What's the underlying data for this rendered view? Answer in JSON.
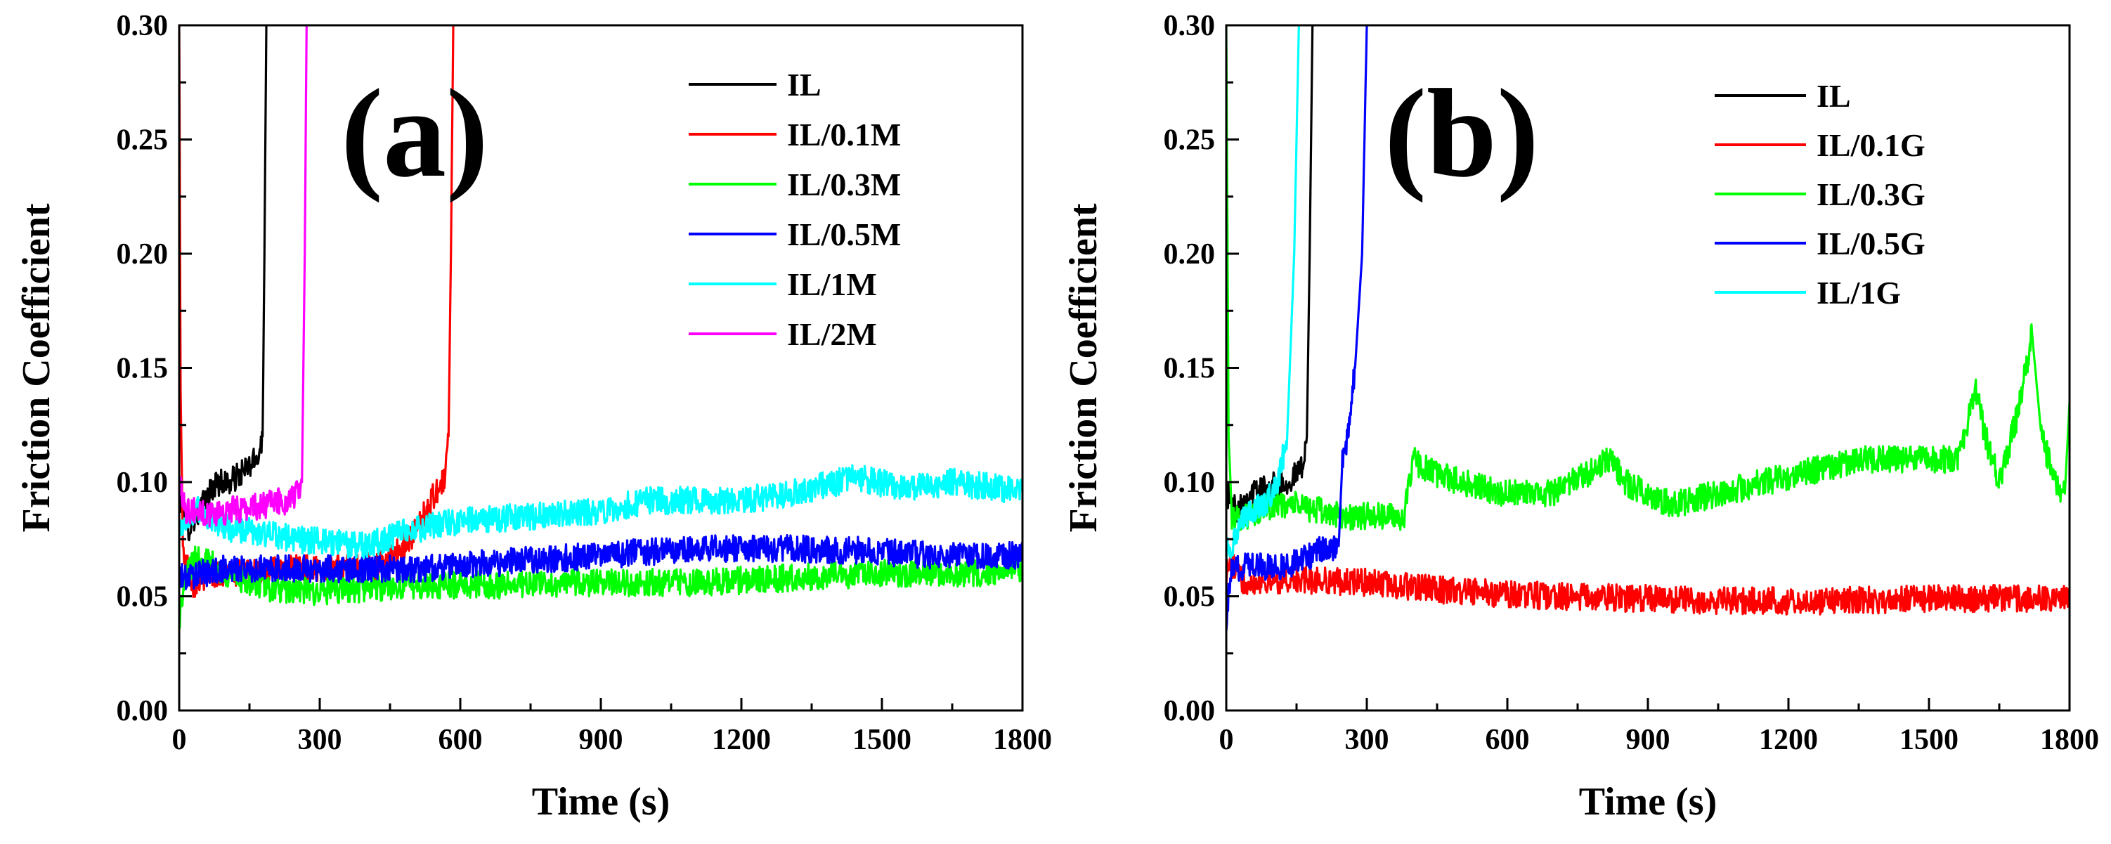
{
  "chart_data": [
    {
      "type": "line",
      "panel_label": "(a)",
      "xlabel": "Time (s)",
      "ylabel": "Friction Coefficient",
      "xlim": [
        0,
        1800
      ],
      "ylim": [
        0,
        0.3
      ],
      "x_ticks": [
        0,
        300,
        600,
        900,
        1200,
        1500,
        1800
      ],
      "x_tick_labels": [
        "0",
        "300",
        "600",
        "900",
        "1200",
        "1500",
        "1800"
      ],
      "y_ticks": [
        0,
        0.05,
        0.1,
        0.15,
        0.2,
        0.25,
        0.3
      ],
      "y_tick_labels": [
        "0.00",
        "0.05",
        "0.10",
        "0.15",
        "0.20",
        "0.25",
        "0.30"
      ],
      "legend_position": "top-right",
      "series": [
        {
          "name": "IL",
          "color": "#000000",
          "points": [
            [
              0,
              0.095
            ],
            [
              20,
              0.08
            ],
            [
              50,
              0.09
            ],
            [
              80,
              0.1
            ],
            [
              110,
              0.1
            ],
            [
              140,
              0.105
            ],
            [
              165,
              0.11
            ],
            [
              178,
              0.12
            ],
            [
              182,
              0.2
            ],
            [
              186,
              0.3
            ]
          ]
        },
        {
          "name": "IL/0.1M",
          "color": "#ff0000",
          "points": [
            [
              0,
              0.3
            ],
            [
              3,
              0.14
            ],
            [
              8,
              0.07
            ],
            [
              30,
              0.055
            ],
            [
              60,
              0.06
            ],
            [
              150,
              0.06
            ],
            [
              250,
              0.062
            ],
            [
              350,
              0.063
            ],
            [
              420,
              0.063
            ],
            [
              470,
              0.07
            ],
            [
              510,
              0.08
            ],
            [
              545,
              0.095
            ],
            [
              565,
              0.1
            ],
            [
              575,
              0.12
            ],
            [
              580,
              0.2
            ],
            [
              585,
              0.3
            ]
          ]
        },
        {
          "name": "IL/0.3M",
          "color": "#00ff00",
          "points": [
            [
              0,
              0.04
            ],
            [
              15,
              0.06
            ],
            [
              40,
              0.068
            ],
            [
              100,
              0.06
            ],
            [
              200,
              0.053
            ],
            [
              300,
              0.052
            ],
            [
              500,
              0.055
            ],
            [
              700,
              0.055
            ],
            [
              900,
              0.056
            ],
            [
              1100,
              0.056
            ],
            [
              1300,
              0.058
            ],
            [
              1500,
              0.06
            ],
            [
              1700,
              0.06
            ],
            [
              1800,
              0.062
            ]
          ]
        },
        {
          "name": "IL/0.5M",
          "color": "#0000ff",
          "points": [
            [
              0,
              0.058
            ],
            [
              100,
              0.062
            ],
            [
              300,
              0.062
            ],
            [
              500,
              0.062
            ],
            [
              700,
              0.065
            ],
            [
              900,
              0.068
            ],
            [
              1100,
              0.071
            ],
            [
              1300,
              0.071
            ],
            [
              1450,
              0.07
            ],
            [
              1600,
              0.068
            ],
            [
              1800,
              0.068
            ]
          ]
        },
        {
          "name": "IL/1M",
          "color": "#00ffff",
          "points": [
            [
              0,
              0.08
            ],
            [
              40,
              0.088
            ],
            [
              100,
              0.08
            ],
            [
              250,
              0.075
            ],
            [
              400,
              0.072
            ],
            [
              480,
              0.078
            ],
            [
              600,
              0.083
            ],
            [
              750,
              0.085
            ],
            [
              900,
              0.087
            ],
            [
              1000,
              0.092
            ],
            [
              1200,
              0.092
            ],
            [
              1300,
              0.095
            ],
            [
              1450,
              0.102
            ],
            [
              1550,
              0.097
            ],
            [
              1650,
              0.1
            ],
            [
              1800,
              0.096
            ]
          ]
        },
        {
          "name": "IL/2M",
          "color": "#ff00ff",
          "points": [
            [
              0,
              0.1
            ],
            [
              15,
              0.088
            ],
            [
              60,
              0.086
            ],
            [
              120,
              0.088
            ],
            [
              180,
              0.09
            ],
            [
              230,
              0.092
            ],
            [
              255,
              0.095
            ],
            [
              262,
              0.1
            ],
            [
              268,
              0.2
            ],
            [
              272,
              0.3
            ]
          ]
        }
      ]
    },
    {
      "type": "line",
      "panel_label": "(b)",
      "xlabel": "Time (s)",
      "ylabel": "Friction Coefficient",
      "xlim": [
        0,
        1800
      ],
      "ylim": [
        0,
        0.3
      ],
      "x_ticks": [
        0,
        300,
        600,
        900,
        1200,
        1500,
        1800
      ],
      "x_tick_labels": [
        "0",
        "300",
        "600",
        "900",
        "1200",
        "1500",
        "1800"
      ],
      "y_ticks": [
        0,
        0.05,
        0.1,
        0.15,
        0.2,
        0.25,
        0.3
      ],
      "y_tick_labels": [
        "0.00",
        "0.05",
        "0.10",
        "0.15",
        "0.20",
        "0.25",
        "0.30"
      ],
      "legend_position": "top-right",
      "series": [
        {
          "name": "IL",
          "color": "#000000",
          "points": [
            [
              0,
              0.095
            ],
            [
              20,
              0.088
            ],
            [
              50,
              0.095
            ],
            [
              90,
              0.098
            ],
            [
              130,
              0.1
            ],
            [
              160,
              0.105
            ],
            [
              172,
              0.12
            ],
            [
              178,
              0.2
            ],
            [
              184,
              0.3
            ]
          ]
        },
        {
          "name": "IL/0.1G",
          "color": "#ff0000",
          "points": [
            [
              0,
              0.06
            ],
            [
              10,
              0.065
            ],
            [
              30,
              0.057
            ],
            [
              100,
              0.057
            ],
            [
              200,
              0.057
            ],
            [
              300,
              0.056
            ],
            [
              400,
              0.054
            ],
            [
              500,
              0.052
            ],
            [
              600,
              0.051
            ],
            [
              700,
              0.05
            ],
            [
              900,
              0.049
            ],
            [
              1100,
              0.048
            ],
            [
              1300,
              0.048
            ],
            [
              1500,
              0.049
            ],
            [
              1700,
              0.049
            ],
            [
              1800,
              0.049
            ]
          ]
        },
        {
          "name": "IL/0.3G",
          "color": "#00ff00",
          "points": [
            [
              0,
              0.3
            ],
            [
              5,
              0.12
            ],
            [
              12,
              0.085
            ],
            [
              50,
              0.085
            ],
            [
              100,
              0.09
            ],
            [
              150,
              0.09
            ],
            [
              250,
              0.085
            ],
            [
              320,
              0.085
            ],
            [
              380,
              0.085
            ],
            [
              400,
              0.11
            ],
            [
              430,
              0.105
            ],
            [
              500,
              0.1
            ],
            [
              600,
              0.095
            ],
            [
              700,
              0.095
            ],
            [
              820,
              0.11
            ],
            [
              850,
              0.1
            ],
            [
              950,
              0.09
            ],
            [
              1050,
              0.095
            ],
            [
              1150,
              0.1
            ],
            [
              1250,
              0.105
            ],
            [
              1350,
              0.11
            ],
            [
              1450,
              0.11
            ],
            [
              1560,
              0.11
            ],
            [
              1600,
              0.14
            ],
            [
              1620,
              0.12
            ],
            [
              1650,
              0.1
            ],
            [
              1690,
              0.13
            ],
            [
              1720,
              0.165
            ],
            [
              1740,
              0.12
            ],
            [
              1770,
              0.1
            ],
            [
              1790,
              0.095
            ],
            [
              1800,
              0.135
            ]
          ]
        },
        {
          "name": "IL/0.5G",
          "color": "#0000ff",
          "points": [
            [
              0,
              0.04
            ],
            [
              10,
              0.06
            ],
            [
              50,
              0.065
            ],
            [
              100,
              0.062
            ],
            [
              150,
              0.065
            ],
            [
              200,
              0.07
            ],
            [
              240,
              0.072
            ],
            [
              248,
              0.11
            ],
            [
              260,
              0.12
            ],
            [
              275,
              0.15
            ],
            [
              290,
              0.2
            ],
            [
              300,
              0.3
            ]
          ]
        },
        {
          "name": "IL/1G",
          "color": "#00ffff",
          "points": [
            [
              0,
              0.07
            ],
            [
              20,
              0.075
            ],
            [
              40,
              0.085
            ],
            [
              80,
              0.09
            ],
            [
              110,
              0.1
            ],
            [
              130,
              0.12
            ],
            [
              145,
              0.2
            ],
            [
              155,
              0.3
            ]
          ]
        }
      ]
    }
  ]
}
